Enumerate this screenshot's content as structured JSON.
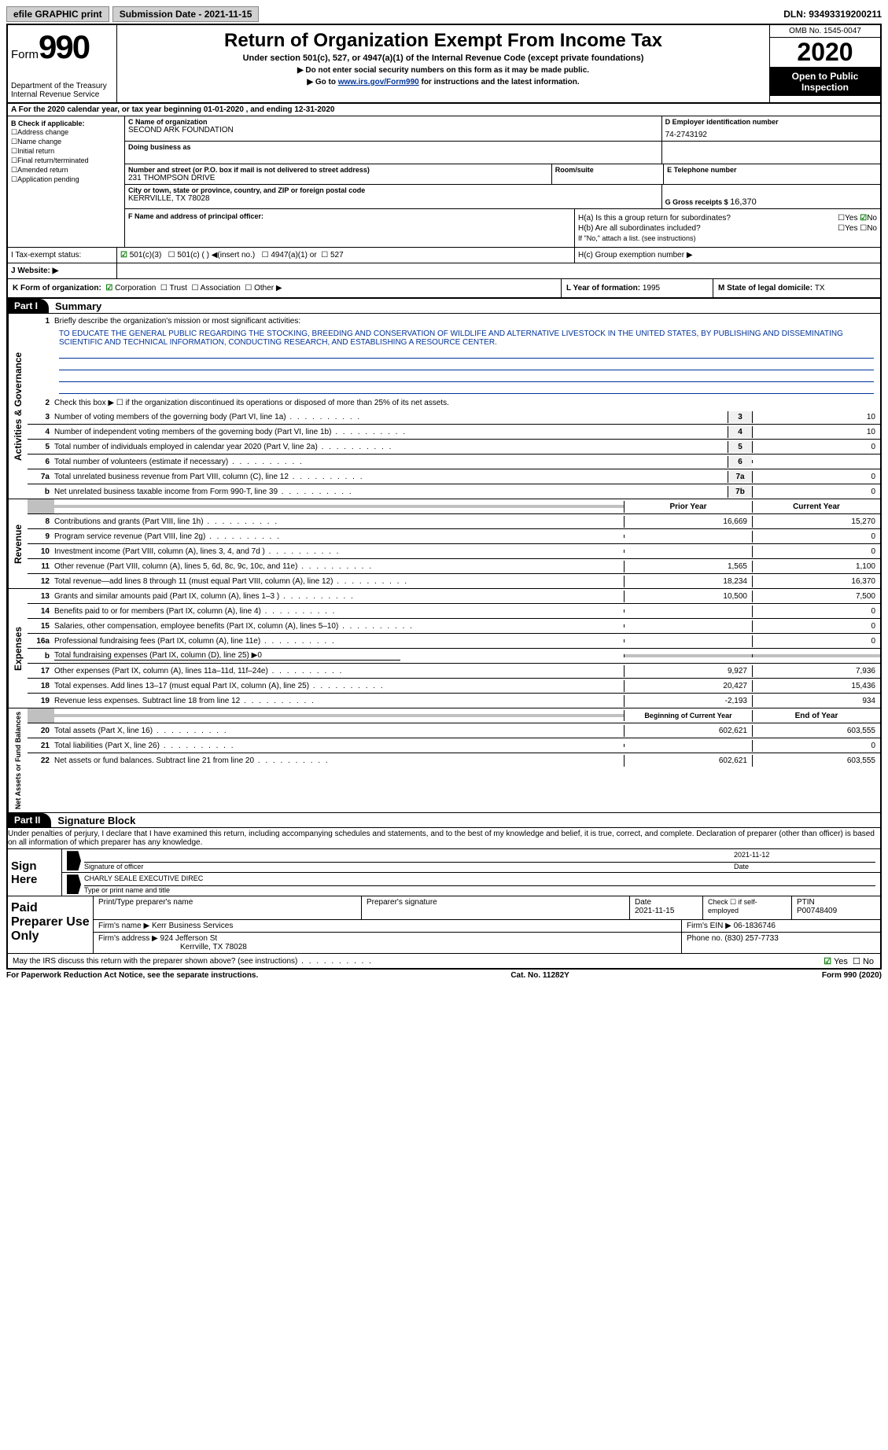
{
  "topbar": {
    "efile": "efile GRAPHIC print",
    "sub_label": "Submission Date - 2021-11-15",
    "dln": "DLN: 93493319200211"
  },
  "header": {
    "form_word": "Form",
    "form_num": "990",
    "dept1": "Department of the Treasury",
    "dept2": "Internal Revenue Service",
    "title": "Return of Organization Exempt From Income Tax",
    "subtitle": "Under section 501(c), 527, or 4947(a)(1) of the Internal Revenue Code (except private foundations)",
    "line1": "▶ Do not enter social security numbers on this form as it may be made public.",
    "line2_pre": "▶ Go to ",
    "line2_link": "www.irs.gov/Form990",
    "line2_post": " for instructions and the latest information.",
    "omb": "OMB No. 1545-0047",
    "year": "2020",
    "open": "Open to Public Inspection"
  },
  "rowA": "A For the 2020 calendar year, or tax year beginning 01-01-2020    , and ending 12-31-2020",
  "B": {
    "label": "B Check if applicable:",
    "opts": [
      "Address change",
      "Name change",
      "Initial return",
      "Final return/terminated",
      "Amended return",
      "Application pending"
    ]
  },
  "C": {
    "name_label": "C Name of organization",
    "name": "SECOND ARK FOUNDATION",
    "dba_label": "Doing business as",
    "addr_label": "Number and street (or P.O. box if mail is not delivered to street address)",
    "room_label": "Room/suite",
    "addr": "231 THOMPSON DRIVE",
    "city_label": "City or town, state or province, country, and ZIP or foreign postal code",
    "city": "KERRVILLE, TX  78028"
  },
  "D": {
    "label": "D Employer identification number",
    "val": "74-2743192"
  },
  "E": {
    "label": "E Telephone number"
  },
  "G": {
    "label": "G Gross receipts $ ",
    "val": "16,370"
  },
  "F": {
    "label": "F  Name and address of principal officer:"
  },
  "H": {
    "a": "H(a)  Is this a group return for subordinates?",
    "b": "H(b)  Are all subordinates included?",
    "b_note": "If \"No,\" attach a list. (see instructions)",
    "c": "H(c)  Group exemption number ▶",
    "yes": "Yes",
    "no": "No"
  },
  "I": {
    "label": "I   Tax-exempt status:",
    "o1": "501(c)(3)",
    "o2": "501(c) (  ) ◀(insert no.)",
    "o3": "4947(a)(1) or",
    "o4": "527"
  },
  "J": {
    "label": "J   Website: ▶"
  },
  "K": {
    "label": "K Form of organization:",
    "o1": "Corporation",
    "o2": "Trust",
    "o3": "Association",
    "o4": "Other ▶"
  },
  "L": {
    "label": "L Year of formation: ",
    "val": "1995"
  },
  "M": {
    "label": "M State of legal domicile: ",
    "val": "TX"
  },
  "parts": {
    "p1": "Part I",
    "p1_title": "Summary",
    "p2": "Part II",
    "p2_title": "Signature Block"
  },
  "summary": {
    "q1": "Briefly describe the organization's mission or most significant activities:",
    "mission": "TO EDUCATE THE GENERAL PUBLIC REGARDING THE STOCKING, BREEDING AND CONSERVATION OF WILDLIFE AND ALTERNATIVE LIVESTOCK IN THE UNITED STATES, BY PUBLISHING AND DISSEMINATING SCIENTIFIC AND TECHNICAL INFORMATION, CONDUCTING RESEARCH, AND ESTABLISHING A RESOURCE CENTER.",
    "q2": "Check this box ▶ ☐ if the organization discontinued its operations or disposed of more than 25% of its net assets.",
    "rows_gov": [
      {
        "n": "3",
        "t": "Number of voting members of the governing body (Part VI, line 1a)",
        "nc": "3",
        "v": "10"
      },
      {
        "n": "4",
        "t": "Number of independent voting members of the governing body (Part VI, line 1b)",
        "nc": "4",
        "v": "10"
      },
      {
        "n": "5",
        "t": "Total number of individuals employed in calendar year 2020 (Part V, line 2a)",
        "nc": "5",
        "v": "0"
      },
      {
        "n": "6",
        "t": "Total number of volunteers (estimate if necessary)",
        "nc": "6",
        "v": ""
      },
      {
        "n": "7a",
        "t": "Total unrelated business revenue from Part VIII, column (C), line 12",
        "nc": "7a",
        "v": "0"
      },
      {
        "n": "b",
        "t": "Net unrelated business taxable income from Form 990-T, line 39",
        "nc": "7b",
        "v": "0"
      }
    ],
    "hdr_prior": "Prior Year",
    "hdr_curr": "Current Year",
    "rows_rev": [
      {
        "n": "8",
        "t": "Contributions and grants (Part VIII, line 1h)",
        "p": "16,669",
        "c": "15,270"
      },
      {
        "n": "9",
        "t": "Program service revenue (Part VIII, line 2g)",
        "p": "",
        "c": "0"
      },
      {
        "n": "10",
        "t": "Investment income (Part VIII, column (A), lines 3, 4, and 7d )",
        "p": "",
        "c": "0"
      },
      {
        "n": "11",
        "t": "Other revenue (Part VIII, column (A), lines 5, 6d, 8c, 9c, 10c, and 11e)",
        "p": "1,565",
        "c": "1,100"
      },
      {
        "n": "12",
        "t": "Total revenue—add lines 8 through 11 (must equal Part VIII, column (A), line 12)",
        "p": "18,234",
        "c": "16,370"
      }
    ],
    "rows_exp": [
      {
        "n": "13",
        "t": "Grants and similar amounts paid (Part IX, column (A), lines 1–3 )",
        "p": "10,500",
        "c": "7,500"
      },
      {
        "n": "14",
        "t": "Benefits paid to or for members (Part IX, column (A), line 4)",
        "p": "",
        "c": "0"
      },
      {
        "n": "15",
        "t": "Salaries, other compensation, employee benefits (Part IX, column (A), lines 5–10)",
        "p": "",
        "c": "0"
      },
      {
        "n": "16a",
        "t": "Professional fundraising fees (Part IX, column (A), line 11e)",
        "p": "",
        "c": "0"
      },
      {
        "n": "b",
        "t": "Total fundraising expenses (Part IX, column (D), line 25) ▶0",
        "p": "GRAY",
        "c": "GRAY"
      },
      {
        "n": "17",
        "t": "Other expenses (Part IX, column (A), lines 11a–11d, 11f–24e)",
        "p": "9,927",
        "c": "7,936"
      },
      {
        "n": "18",
        "t": "Total expenses. Add lines 13–17 (must equal Part IX, column (A), line 25)",
        "p": "20,427",
        "c": "15,436"
      },
      {
        "n": "19",
        "t": "Revenue less expenses. Subtract line 18 from line 12",
        "p": "-2,193",
        "c": "934"
      }
    ],
    "hdr_boy": "Beginning of Current Year",
    "hdr_eoy": "End of Year",
    "rows_na": [
      {
        "n": "20",
        "t": "Total assets (Part X, line 16)",
        "p": "602,621",
        "c": "603,555"
      },
      {
        "n": "21",
        "t": "Total liabilities (Part X, line 26)",
        "p": "",
        "c": "0"
      },
      {
        "n": "22",
        "t": "Net assets or fund balances. Subtract line 21 from line 20",
        "p": "602,621",
        "c": "603,555"
      }
    ],
    "side_gov": "Activities & Governance",
    "side_rev": "Revenue",
    "side_exp": "Expenses",
    "side_na": "Net Assets or Fund Balances"
  },
  "sig": {
    "para": "Under penalties of perjury, I declare that I have examined this return, including accompanying schedules and statements, and to the best of my knowledge and belief, it is true, correct, and complete. Declaration of preparer (other than officer) is based on all information of which preparer has any knowledge.",
    "sign_here": "Sign Here",
    "date": "2021-11-12",
    "sig_of": "Signature of officer",
    "date_lbl": "Date",
    "name": "CHARLY SEALE  EXECUTIVE DIREC",
    "name_lbl": "Type or print name and title"
  },
  "prep": {
    "title": "Paid Preparer Use Only",
    "r1c1": "Print/Type preparer's name",
    "r1c2": "Preparer's signature",
    "r1c3_lbl": "Date",
    "r1c3": "2021-11-15",
    "r1c4": "Check ☐ if self-employed",
    "r1c5_lbl": "PTIN",
    "r1c5": "P00748409",
    "firm_lbl": "Firm's name    ▶ ",
    "firm": "Kerr Business Services",
    "ein_lbl": "Firm's EIN ▶ ",
    "ein": "06-1836746",
    "addr_lbl": "Firm's address ▶ ",
    "addr1": "924 Jefferson St",
    "addr2": "Kerrville, TX  78028",
    "phone_lbl": "Phone no. ",
    "phone": "(830) 257-7733",
    "discuss": "May the IRS discuss this return with the preparer shown above? (see instructions)"
  },
  "footer": {
    "l": "For Paperwork Reduction Act Notice, see the separate instructions.",
    "c": "Cat. No. 11282Y",
    "r": "Form 990 (2020)"
  }
}
